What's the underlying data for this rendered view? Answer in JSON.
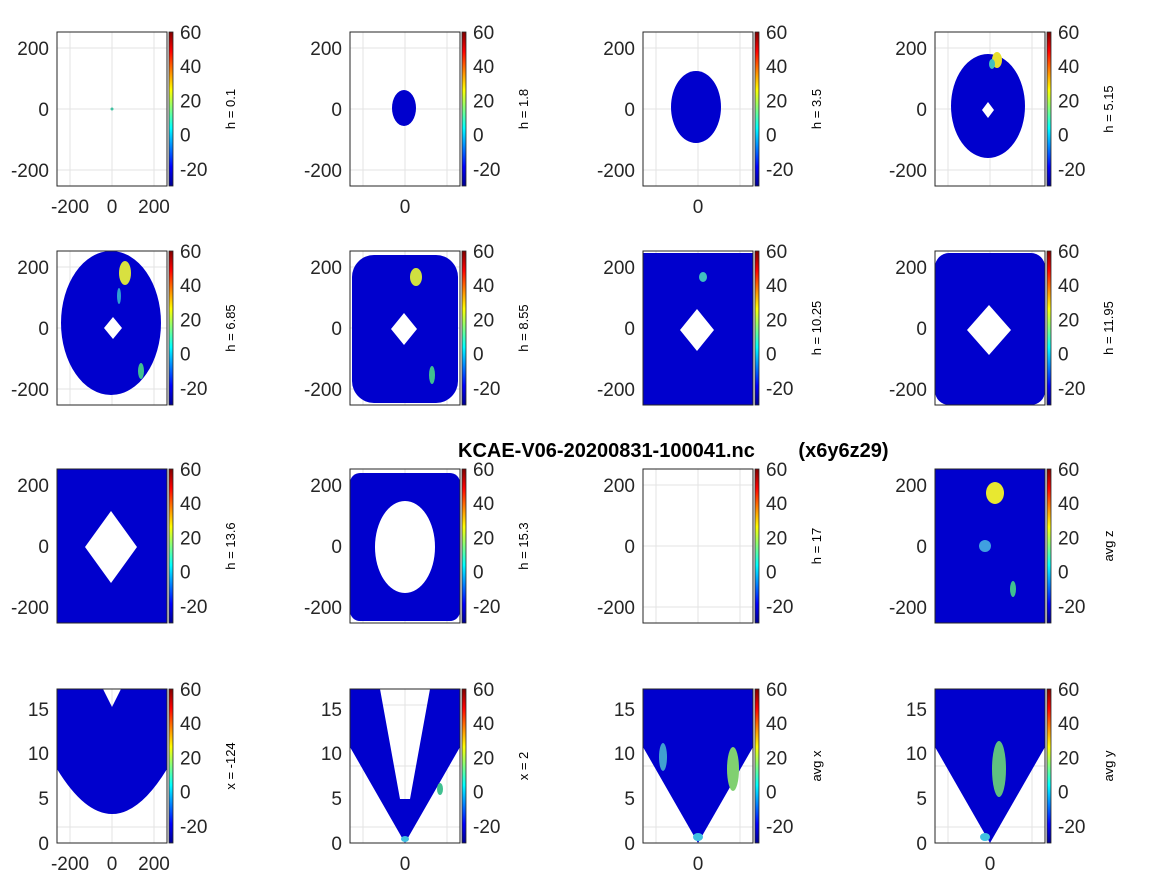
{
  "figure": {
    "title_file": "KCAE-V06-20200831-100041.nc",
    "title_grid": "(x6y6z29)"
  },
  "colorbar": {
    "ticks": [
      "60",
      "40",
      "20",
      "0",
      "-20"
    ],
    "range": [
      -30,
      60
    ],
    "colormap": "jet",
    "colors": [
      "#00008f",
      "#0000ff",
      "#0080ff",
      "#00ffff",
      "#80ff80",
      "#ffff00",
      "#ff8000",
      "#ff0000",
      "#800000"
    ]
  },
  "chart_data": [
    {
      "type": "heatmap",
      "label": "h = 0.1",
      "yticks": [
        "200",
        "0",
        "-200"
      ],
      "xticks": [
        "-200",
        "0",
        "200"
      ],
      "ylim": [
        -250,
        250
      ],
      "xlim": [
        -250,
        250
      ]
    },
    {
      "type": "heatmap",
      "label": "h = 1.8",
      "yticks": [
        "200",
        "0",
        "-200"
      ],
      "xticks": [
        "0"
      ],
      "ylim": [
        -250,
        250
      ]
    },
    {
      "type": "heatmap",
      "label": "h = 3.5",
      "yticks": [
        "200",
        "0",
        "-200"
      ],
      "xticks": [
        "0"
      ],
      "ylim": [
        -250,
        250
      ]
    },
    {
      "type": "heatmap",
      "label": "h = 5.15",
      "yticks": [
        "200",
        "0",
        "-200"
      ],
      "xticks": [],
      "ylim": [
        -250,
        250
      ]
    },
    {
      "type": "heatmap",
      "label": "h = 6.85",
      "yticks": [
        "200",
        "0",
        "-200"
      ],
      "xticks": [],
      "ylim": [
        -250,
        250
      ]
    },
    {
      "type": "heatmap",
      "label": "h = 8.55",
      "yticks": [
        "200",
        "0",
        "-200"
      ],
      "xticks": [],
      "ylim": [
        -250,
        250
      ]
    },
    {
      "type": "heatmap",
      "label": "h = 10.25",
      "yticks": [
        "200",
        "0",
        "-200"
      ],
      "xticks": [],
      "ylim": [
        -250,
        250
      ]
    },
    {
      "type": "heatmap",
      "label": "h = 11.95",
      "yticks": [
        "200",
        "0",
        "-200"
      ],
      "xticks": [],
      "ylim": [
        -250,
        250
      ]
    },
    {
      "type": "heatmap",
      "label": "h = 13.6",
      "yticks": [
        "200",
        "0",
        "-200"
      ],
      "xticks": [],
      "ylim": [
        -250,
        250
      ]
    },
    {
      "type": "heatmap",
      "label": "h = 15.3",
      "yticks": [
        "200",
        "0",
        "-200"
      ],
      "xticks": [],
      "ylim": [
        -250,
        250
      ]
    },
    {
      "type": "heatmap",
      "label": "h = 17",
      "yticks": [
        "200",
        "0",
        "-200"
      ],
      "xticks": [],
      "ylim": [
        -250,
        250
      ]
    },
    {
      "type": "heatmap",
      "label": "avg z",
      "yticks": [
        "200",
        "0",
        "-200"
      ],
      "xticks": [],
      "ylim": [
        -250,
        250
      ]
    },
    {
      "type": "heatmap",
      "label": "x = -124",
      "yticks": [
        "15",
        "10",
        "5",
        "0"
      ],
      "xticks": [
        "-200",
        "0",
        "200"
      ],
      "ylim": [
        0,
        17
      ],
      "xlim": [
        -250,
        250
      ]
    },
    {
      "type": "heatmap",
      "label": "x = 2",
      "yticks": [
        "15",
        "10",
        "5",
        "0"
      ],
      "xticks": [
        "0"
      ],
      "ylim": [
        0,
        17
      ]
    },
    {
      "type": "heatmap",
      "label": "avg x",
      "yticks": [
        "15",
        "10",
        "5",
        "0"
      ],
      "xticks": [
        "0"
      ],
      "ylim": [
        0,
        17
      ]
    },
    {
      "type": "heatmap",
      "label": "avg y",
      "yticks": [
        "15",
        "10",
        "5",
        "0"
      ],
      "xticks": [
        "0"
      ],
      "ylim": [
        0,
        17
      ]
    }
  ]
}
